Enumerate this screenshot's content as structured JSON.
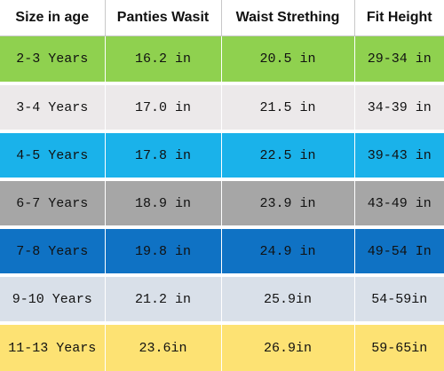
{
  "table": {
    "headers": [
      "Size in age",
      "Panties Wasit",
      "Waist Strething",
      "Fit Height"
    ],
    "rows": [
      {
        "cells": [
          "2-3 Years",
          "16.2 in",
          "20.5 in",
          "29-34 in"
        ],
        "color": "#8fd14f"
      },
      {
        "cells": [
          "3-4 Years",
          "17.0 in",
          "21.5 in",
          "34-39 in"
        ],
        "color": "#ece9ea"
      },
      {
        "cells": [
          "4-5 Years",
          "17.8 in",
          "22.5 in",
          "39-43 in"
        ],
        "color": "#1ab2ea"
      },
      {
        "cells": [
          "6-7 Years",
          "18.9 in",
          "23.9 in",
          "43-49 in"
        ],
        "color": "#a6a6a6"
      },
      {
        "cells": [
          "7-8 Years",
          "19.8 in",
          "24.9 in",
          "49-54 In"
        ],
        "color": "#0f72c4"
      },
      {
        "cells": [
          "9-10 Years",
          "21.2 in",
          "25.9in",
          "54-59in"
        ],
        "color": "#d9e0e9"
      },
      {
        "cells": [
          "11-13 Years",
          "23.6in",
          "26.9in",
          "59-65in"
        ],
        "color": "#fde273"
      }
    ]
  }
}
